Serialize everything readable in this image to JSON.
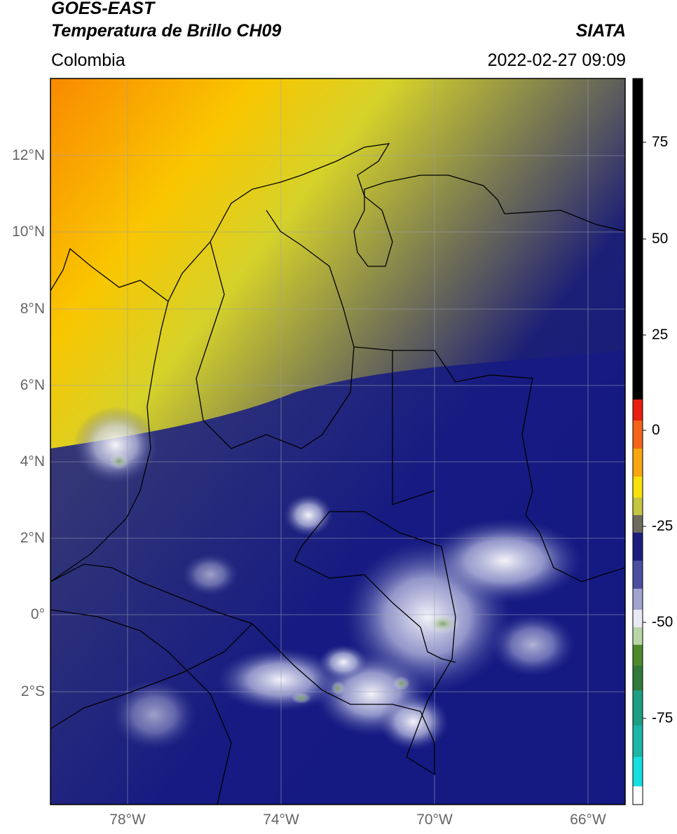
{
  "header": {
    "satellite": "GOES-EAST",
    "product": "Temperatura de Brillo CH09",
    "region": "Colombia",
    "organization": "SIATA",
    "datetime": "2022-02-27 09:09"
  },
  "map": {
    "lat_labels": [
      "12°N",
      "10°N",
      "8°N",
      "6°N",
      "4°N",
      "2°N",
      "0°",
      "2°S"
    ],
    "lon_labels": [
      "78°W",
      "74°W",
      "70°W",
      "66°W"
    ]
  },
  "colorbar": {
    "range": [
      -95,
      90
    ],
    "ticks": [
      "75",
      "50",
      "25",
      "0",
      "-25",
      "-50",
      "-75"
    ]
  }
}
